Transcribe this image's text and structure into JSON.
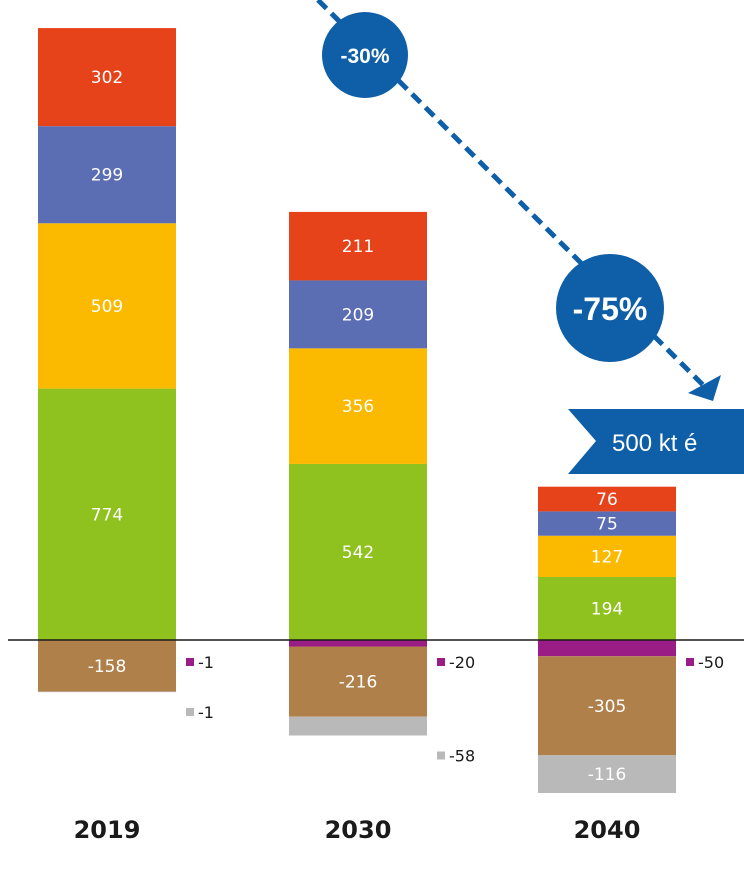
{
  "chart_data": {
    "type": "bar",
    "stacked": true,
    "categories": [
      "2019",
      "2030",
      "2040"
    ],
    "series": [
      {
        "key": "green",
        "color": "#8fc21f",
        "values": [
          774,
          542,
          194
        ]
      },
      {
        "key": "yellow",
        "color": "#fbb900",
        "values": [
          509,
          356,
          127
        ]
      },
      {
        "key": "blue",
        "color": "#5b6db3",
        "values": [
          299,
          209,
          75
        ]
      },
      {
        "key": "red",
        "color": "#e6431b",
        "values": [
          302,
          211,
          76
        ]
      },
      {
        "key": "purple",
        "color": "#9a1c85",
        "values": [
          -1,
          -20,
          -50
        ]
      },
      {
        "key": "brown",
        "color": "#b0804b",
        "values": [
          -158,
          -216,
          -305
        ]
      },
      {
        "key": "gray",
        "color": "#b9b9b9",
        "values": [
          -1,
          -58,
          -116
        ]
      }
    ],
    "segment_labels": [
      [
        "774",
        "509",
        "299",
        "302",
        "-158"
      ],
      [
        "542",
        "356",
        "209",
        "211",
        "-216"
      ],
      [
        "194",
        "127",
        "75",
        "76",
        "-305",
        "-116"
      ]
    ],
    "side_labels": [
      {
        "purple": "-1",
        "gray": "-1"
      },
      {
        "purple": "-20",
        "gray": "-58"
      },
      {
        "purple": "-50"
      }
    ],
    "annotations": {
      "reduction_2030": "-30%",
      "reduction_2040": "-75%",
      "target_banner": "500 kt é"
    },
    "accent_color": "#0f5fa8",
    "xlabel": "",
    "ylabel": ""
  }
}
